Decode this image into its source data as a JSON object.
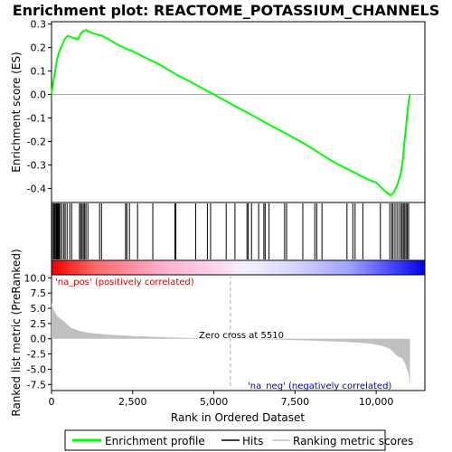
{
  "chart_data": {
    "type": "line",
    "title": "Enrichment plot: REACTOME_POTASSIUM_CHANNELS",
    "top_panel": {
      "ylabel": "Enrichment score (ES)",
      "ylim": [
        -0.46,
        0.31
      ],
      "yticks": [
        "0.3",
        "0.2",
        "0.1",
        "0.0",
        "-0.1",
        "-0.2",
        "-0.3",
        "-0.4"
      ],
      "ytick_values": [
        0.3,
        0.2,
        0.1,
        0.0,
        -0.1,
        -0.2,
        -0.3,
        -0.4
      ],
      "series": [
        {
          "name": "Enrichment profile",
          "color": "#00ff00",
          "x": [
            0,
            50,
            110,
            170,
            230,
            290,
            360,
            420,
            500,
            600,
            700,
            820,
            900,
            980,
            1060,
            1130,
            1250,
            1400,
            1550,
            1700,
            2000,
            2300,
            2500,
            2700,
            3000,
            3300,
            3600,
            3900,
            4200,
            4600,
            5000,
            5400,
            5800,
            6200,
            6600,
            7000,
            7400,
            7800,
            8200,
            8600,
            9000,
            9300,
            9500,
            9800,
            10000,
            10150,
            10300,
            10450,
            10550,
            10650,
            10750,
            10820,
            10870,
            10920,
            10960,
            11000,
            11040
          ],
          "y": [
            0.0,
            0.05,
            0.1,
            0.15,
            0.18,
            0.2,
            0.22,
            0.24,
            0.25,
            0.245,
            0.24,
            0.235,
            0.26,
            0.27,
            0.275,
            0.27,
            0.262,
            0.255,
            0.25,
            0.24,
            0.215,
            0.195,
            0.185,
            0.17,
            0.15,
            0.13,
            0.105,
            0.08,
            0.06,
            0.03,
            0.0,
            -0.03,
            -0.06,
            -0.09,
            -0.12,
            -0.15,
            -0.18,
            -0.21,
            -0.245,
            -0.28,
            -0.31,
            -0.33,
            -0.345,
            -0.365,
            -0.375,
            -0.395,
            -0.415,
            -0.43,
            -0.415,
            -0.385,
            -0.34,
            -0.28,
            -0.2,
            -0.14,
            -0.08,
            -0.03,
            0.0
          ]
        }
      ]
    },
    "hits": [
      30,
      70,
      100,
      130,
      150,
      170,
      190,
      210,
      240,
      270,
      320,
      380,
      420,
      480,
      560,
      620,
      860,
      900,
      940,
      980,
      1020,
      1060,
      1120,
      1480,
      1540,
      2280,
      2320,
      2400,
      2650,
      3120,
      3800,
      3830,
      4440,
      4800,
      4900,
      5380,
      5650,
      6020,
      6060,
      6160,
      6380,
      6540,
      6580,
      6700,
      7180,
      7240,
      7740,
      8110,
      8170,
      8330,
      9100,
      9280,
      9350,
      9590,
      10130,
      10420,
      10480,
      10520,
      10580,
      10640,
      10700,
      10760,
      10800,
      10840,
      10880,
      10920,
      10960,
      11000
    ],
    "bottom_panel": {
      "ylabel": "Ranked list metric (PreRanked)",
      "xlabel": "Rank in Ordered Dataset",
      "ylim": [
        -8.5,
        10.5
      ],
      "yticks": [
        "10.0",
        "7.5",
        "5.0",
        "2.5",
        "0.0",
        "-2.5",
        "-5.0",
        "-7.5"
      ],
      "ytick_values": [
        10.0,
        7.5,
        5.0,
        2.5,
        0.0,
        -2.5,
        -5.0,
        -7.5
      ],
      "xlim": [
        0,
        11500
      ],
      "xticks": [
        "0",
        "2,500",
        "5,000",
        "7,500",
        "10,000"
      ],
      "xtick_values": [
        0,
        2500,
        5000,
        7500,
        10000
      ],
      "metric": {
        "x": [
          0,
          20,
          60,
          120,
          200,
          300,
          400,
          500,
          600,
          800,
          1000,
          1300,
          1600,
          2000,
          2500,
          3000,
          3500,
          4000,
          4500,
          5000,
          5510,
          6000,
          6500,
          7000,
          7500,
          8000,
          8500,
          9000,
          9500,
          9800,
          10000,
          10200,
          10400,
          10500,
          10600,
          10700,
          10800,
          10900,
          11000,
          11040
        ],
        "y": [
          6.0,
          5.5,
          4.8,
          4.2,
          3.6,
          3.2,
          2.8,
          2.3,
          1.8,
          1.4,
          1.1,
          0.9,
          0.75,
          0.6,
          0.45,
          0.35,
          0.25,
          0.18,
          0.1,
          0.05,
          0.0,
          -0.05,
          -0.1,
          -0.15,
          -0.22,
          -0.3,
          -0.4,
          -0.5,
          -0.65,
          -0.8,
          -0.95,
          -1.2,
          -1.6,
          -2.0,
          -2.6,
          -3.0,
          -3.2,
          -4.2,
          -5.8,
          -7.8
        ]
      },
      "zero_cross_label": "Zero cross at 5510",
      "zero_cross_x": 5510,
      "pos_label": "'na_pos' (positively correlated)",
      "neg_label": "'na_neg' (negatively correlated)",
      "pos_color": "#cc0000",
      "neg_color": "#0000cc"
    },
    "legend": {
      "placement": "bottom",
      "entries": [
        {
          "name": "Enrichment profile",
          "color": "#00ff00"
        },
        {
          "name": "Hits",
          "color": "#000000"
        },
        {
          "name": "Ranking metric scores",
          "color": "#c0c0c0"
        }
      ]
    }
  }
}
